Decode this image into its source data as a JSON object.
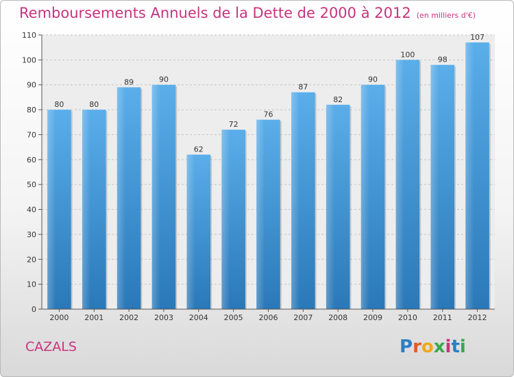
{
  "header": {
    "title": "Remboursements Annuels de la Dette de 2000 à 2012",
    "unit": "(en milliers d'€)"
  },
  "footer": {
    "city": "CAZALS",
    "logo": {
      "letters": [
        "P",
        "r",
        "o",
        "x",
        "i",
        "t",
        "i"
      ],
      "colors": [
        "#2b7fc2",
        "#e05a26",
        "#f2a81a",
        "#3aa84a",
        "#c8337d",
        "#2b7fc2",
        "#3aa84a"
      ]
    }
  },
  "chart_data": {
    "type": "bar",
    "title": "Remboursements Annuels de la Dette de 2000 à 2012",
    "unit": "(en milliers d'€)",
    "categories": [
      "2000",
      "2001",
      "2002",
      "2003",
      "2004",
      "2005",
      "2006",
      "2007",
      "2008",
      "2009",
      "2010",
      "2011",
      "2012"
    ],
    "values": [
      80,
      80,
      89,
      90,
      62,
      72,
      76,
      87,
      82,
      90,
      100,
      98,
      107
    ],
    "ylim": [
      0,
      110
    ],
    "yticks": [
      0,
      10,
      20,
      30,
      40,
      50,
      60,
      70,
      80,
      90,
      100,
      110
    ],
    "grid": true,
    "bar_color": "#4a9ee0"
  }
}
